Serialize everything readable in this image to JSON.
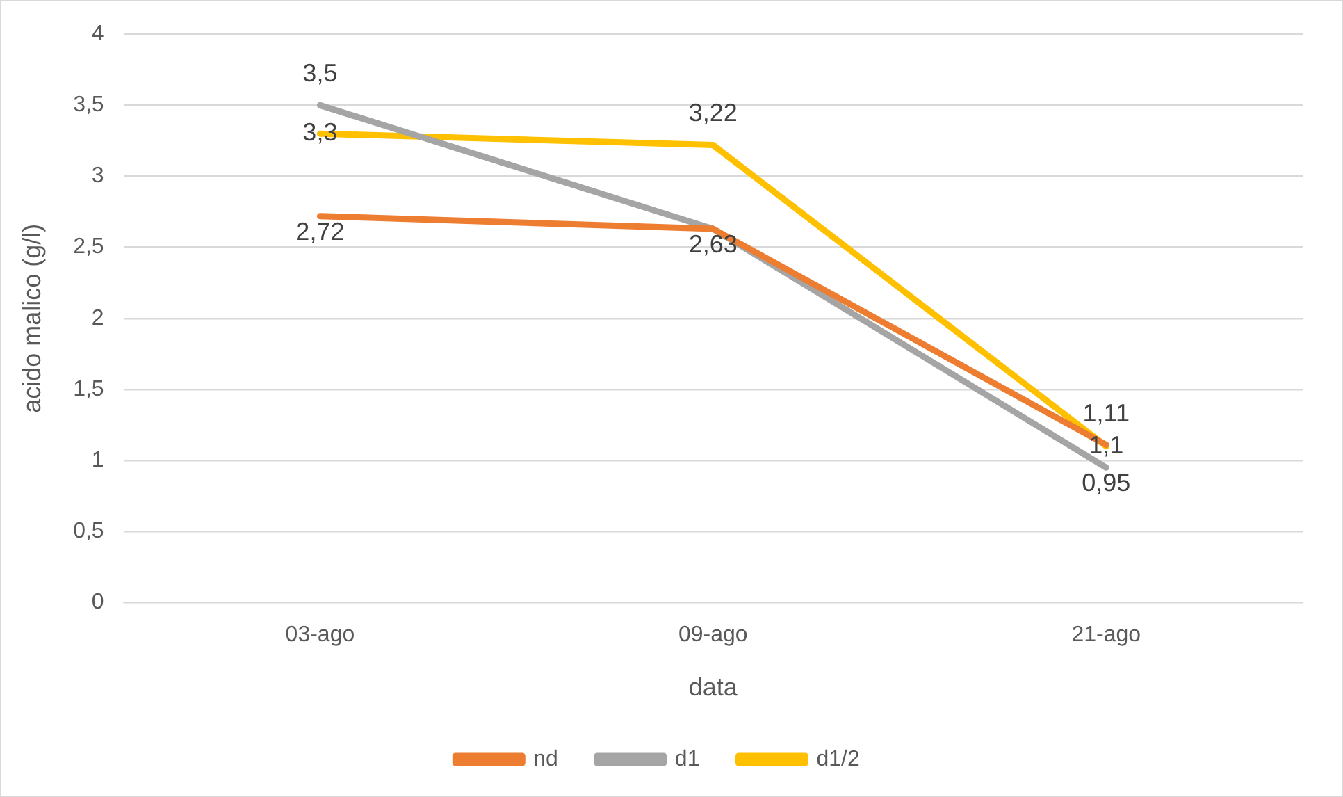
{
  "chart_data": {
    "type": "line",
    "xlabel": "data",
    "ylabel": "acido malico (g/l)",
    "categories": [
      "03-ago",
      "09-ago",
      "21-ago"
    ],
    "series": [
      {
        "name": "nd",
        "color": "#ed7d31",
        "values": [
          2.72,
          2.63,
          1.11
        ],
        "value_labels": [
          "2,72",
          "2,63",
          "1,11"
        ]
      },
      {
        "name": "d1",
        "color": "#a5a5a5",
        "values": [
          3.5,
          2.63,
          0.95
        ],
        "value_labels": [
          "3,5",
          null,
          "0,95"
        ]
      },
      {
        "name": "d1/2",
        "color": "#ffc000",
        "values": [
          3.3,
          3.22,
          1.1
        ],
        "value_labels": [
          "3,3",
          "3,22",
          "1,1"
        ]
      }
    ],
    "ylim": [
      0,
      4
    ],
    "yticks": [
      0,
      {
        "value": 0.5,
        "label": "0,5"
      },
      1,
      {
        "value": 1.5,
        "label": "1,5"
      },
      2,
      {
        "value": 2.5,
        "label": "2,5"
      },
      3,
      {
        "value": 3.5,
        "label": "3,5"
      },
      4
    ],
    "grid": "y",
    "legend": "bottom",
    "marker": "none",
    "line_style": "solid"
  }
}
